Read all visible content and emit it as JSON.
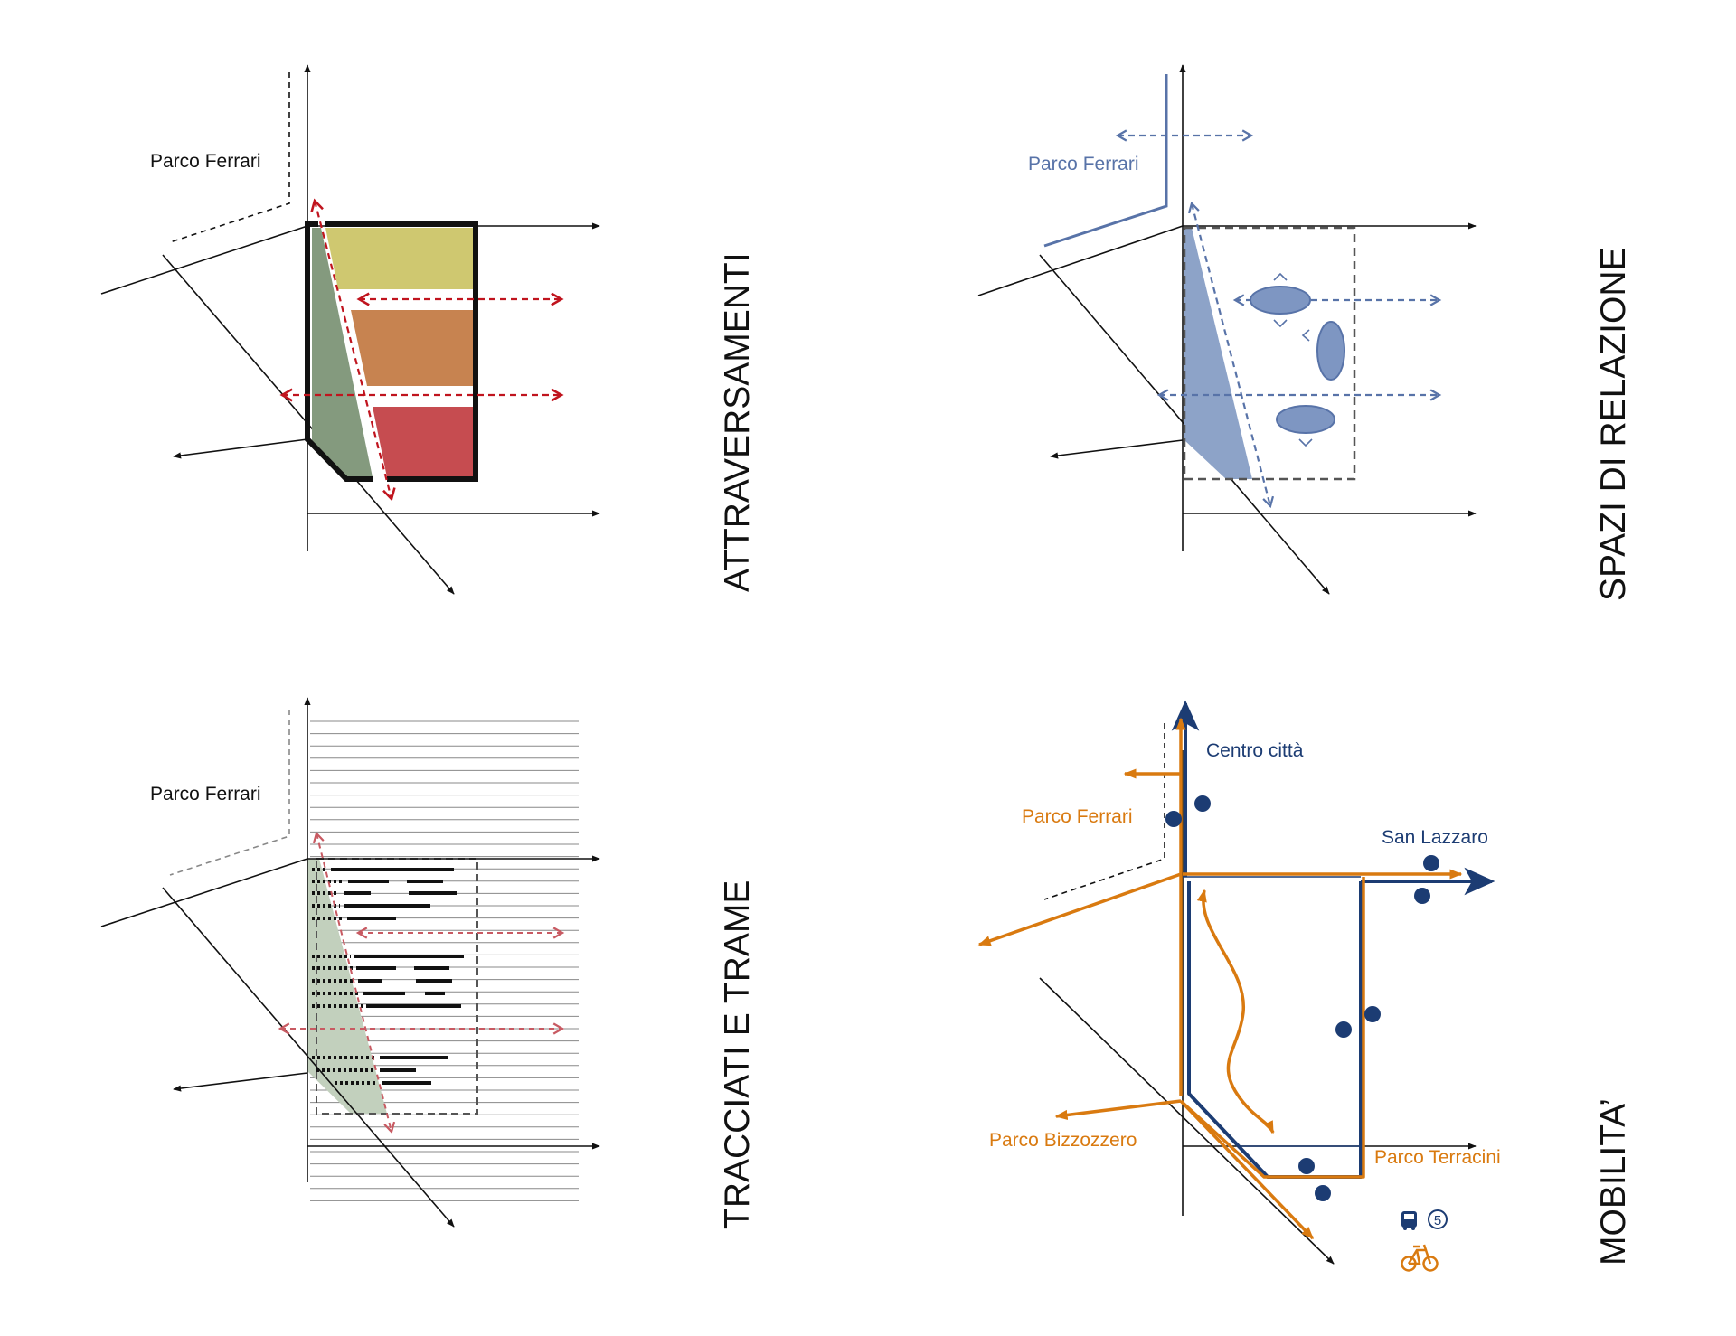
{
  "colors": {
    "axis": "#111111",
    "red_arrow": "#c0141e",
    "red_arrow_light": "#c85a62",
    "yellow": "#cfc870",
    "orange": "#c78350",
    "red": "#c64c50",
    "green": "#849a7e",
    "green_light": "#c2d0bd",
    "blue": "#5873a8",
    "blue_fill": "#8da3c8",
    "navy": "#1c3c73",
    "mobility_orange": "#d97a10",
    "hatch": "#777777"
  },
  "panels": {
    "attraversamenti": {
      "title": "ATTRAVERSAMENTI",
      "park_label": "Parco Ferrari"
    },
    "spazi": {
      "title": "SPAZI DI RELAZIONE",
      "park_label": "Parco Ferrari"
    },
    "tracciati": {
      "title": "TRACCIATI E TRAME",
      "park_label": "Parco Ferrari"
    },
    "mobilita": {
      "title": "MOBILITA’",
      "labels": {
        "centro": "Centro città",
        "ferrari": "Parco Ferrari",
        "san_lazzaro": "San Lazzaro",
        "bizzozzero": "Parco Bizzozzero",
        "terracini": "Parco Terracini",
        "bus_line": "5"
      },
      "icons": [
        "bus-icon",
        "bicycle-icon"
      ]
    }
  }
}
